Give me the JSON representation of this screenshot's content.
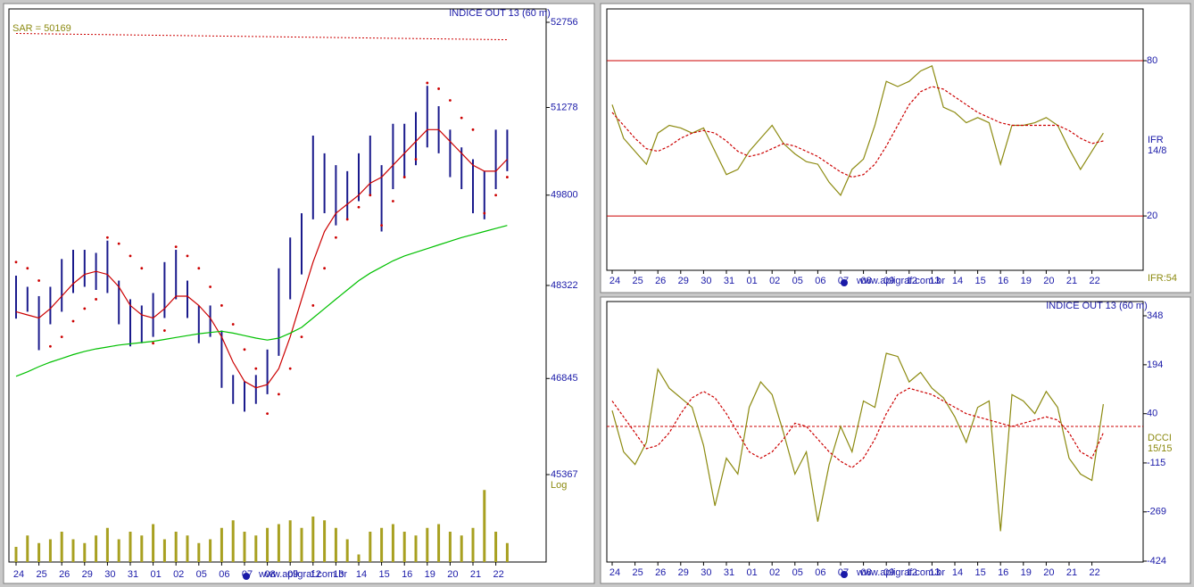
{
  "chart_data": [
    {
      "type": "ohlc",
      "title": "INDICE OUT 13 (60 m)",
      "annotation": "SAR = 50169",
      "scale_label": "Log",
      "log_scale": true,
      "watermark": "www.apligraf.com.br",
      "categories": [
        "24",
        null,
        "25",
        null,
        "26",
        null,
        "29",
        null,
        "30",
        null,
        "31",
        null,
        "01",
        null,
        "02",
        null,
        "05",
        null,
        "06",
        null,
        "07",
        null,
        "08",
        null,
        "09",
        null,
        "12",
        null,
        "13",
        null,
        "14",
        null,
        "15",
        null,
        "16",
        null,
        "19",
        null,
        "20",
        null,
        "21",
        null,
        "22",
        null
      ],
      "ylim": [
        45367,
        52756
      ],
      "yticks": [
        52756,
        51278,
        49800,
        48322,
        46845,
        45367
      ],
      "bar_color": "#1a1a8c",
      "high": [
        48480,
        48300,
        48150,
        48300,
        48750,
        48900,
        48900,
        48850,
        49050,
        48400,
        48100,
        48000,
        48200,
        48700,
        48900,
        48400,
        48000,
        48000,
        47600,
        46900,
        46800,
        46900,
        47300,
        48600,
        49100,
        49500,
        50800,
        50500,
        50300,
        50200,
        50500,
        50800,
        50300,
        51000,
        51000,
        51200,
        51650,
        51300,
        50900,
        50600,
        50400,
        50200,
        50900,
        50900
      ],
      "low": [
        47790,
        47900,
        47290,
        47700,
        47900,
        48200,
        48300,
        48250,
        48200,
        47700,
        47350,
        47400,
        47500,
        47800,
        48100,
        47800,
        47400,
        47500,
        46700,
        46450,
        46330,
        46450,
        46600,
        47200,
        48100,
        48500,
        49400,
        49500,
        49300,
        49400,
        49700,
        49800,
        49200,
        49900,
        50100,
        50300,
        50600,
        50500,
        50100,
        49900,
        49500,
        49400,
        49900,
        50200
      ],
      "series": [
        {
          "color": "#cc0000",
          "style": "solid",
          "values": [
            47900,
            47850,
            47800,
            47950,
            48150,
            48350,
            48500,
            48550,
            48500,
            48300,
            48000,
            47850,
            47800,
            47950,
            48150,
            48150,
            48000,
            47800,
            47500,
            47100,
            46800,
            46700,
            46750,
            47000,
            47500,
            48100,
            48700,
            49200,
            49500,
            49650,
            49800,
            50000,
            50100,
            50300,
            50500,
            50700,
            50900,
            50900,
            50700,
            50500,
            50300,
            50200,
            50200,
            50400
          ]
        },
        {
          "color": "#00c000",
          "style": "solid",
          "values": [
            46880,
            46950,
            47030,
            47100,
            47160,
            47220,
            47270,
            47310,
            47340,
            47370,
            47390,
            47410,
            47430,
            47460,
            47490,
            47520,
            47550,
            47570,
            47590,
            47560,
            47520,
            47480,
            47450,
            47480,
            47560,
            47650,
            47800,
            47950,
            48100,
            48250,
            48400,
            48520,
            48620,
            48720,
            48800,
            48860,
            48920,
            48980,
            49040,
            49100,
            49150,
            49200,
            49250,
            49300
          ]
        },
        {
          "color": "#cc0000",
          "style": "dots",
          "values": [
            48700,
            48600,
            48400,
            47350,
            47500,
            47750,
            47950,
            48100,
            49100,
            49000,
            48800,
            48600,
            47400,
            47600,
            48950,
            48800,
            48600,
            48300,
            48000,
            47700,
            47300,
            47000,
            46300,
            46600,
            47000,
            47500,
            48000,
            48600,
            49100,
            49400,
            49600,
            49800,
            49300,
            49700,
            50100,
            50400,
            51700,
            51600,
            51400,
            51100,
            50900,
            49500,
            49800,
            50100
          ]
        }
      ],
      "trend_line": {
        "color": "#cc0000",
        "values": [
          52560,
          52450
        ]
      },
      "volume": {
        "color": "#a8a020",
        "values": [
          20,
          35,
          25,
          30,
          40,
          30,
          25,
          35,
          45,
          30,
          40,
          35,
          50,
          30,
          40,
          35,
          25,
          30,
          45,
          55,
          40,
          35,
          45,
          50,
          55,
          45,
          60,
          55,
          45,
          30,
          10,
          40,
          45,
          50,
          40,
          35,
          45,
          50,
          40,
          35,
          45,
          95,
          40,
          25
        ]
      }
    },
    {
      "type": "line",
      "labels": [
        "IFR",
        "14/8"
      ],
      "value_label": "IFR:54",
      "watermark": "www.apligraf.com.br",
      "categories": [
        "24",
        null,
        "25",
        null,
        "26",
        null,
        "29",
        null,
        "30",
        null,
        "31",
        null,
        "01",
        null,
        "02",
        null,
        "05",
        null,
        "06",
        null,
        "07",
        null,
        "08",
        null,
        "09",
        null,
        "12",
        null,
        "13",
        null,
        "14",
        null,
        "15",
        null,
        "16",
        null,
        "19",
        null,
        "20",
        null,
        "21",
        null,
        "22",
        null
      ],
      "ylim": [
        -1,
        100
      ],
      "yticks": [
        20,
        80
      ],
      "grid": true,
      "grid_color": "#cc0000",
      "series": [
        {
          "color": "#8c8a10",
          "style": "solid",
          "values": [
            63,
            50,
            45,
            40,
            52,
            55,
            54,
            52,
            54,
            45,
            36,
            38,
            45,
            50,
            55,
            48,
            44,
            41,
            40,
            33,
            28,
            38,
            42,
            55,
            72,
            70,
            72,
            76,
            78,
            62,
            60,
            56,
            58,
            56,
            40,
            55,
            55,
            56,
            58,
            55,
            46,
            38,
            45,
            52
          ]
        },
        {
          "color": "#cc0000",
          "style": "dashed",
          "values": [
            60,
            55,
            50,
            46,
            45,
            47,
            50,
            52,
            53,
            52,
            49,
            45,
            43,
            44,
            46,
            48,
            47,
            45,
            43,
            40,
            37,
            35,
            36,
            40,
            47,
            55,
            63,
            68,
            70,
            69,
            66,
            63,
            60,
            58,
            56,
            55,
            55,
            55,
            55,
            55,
            53,
            50,
            48,
            49
          ]
        }
      ]
    },
    {
      "type": "line",
      "title": "INDICE OUT 13 (60 m)",
      "labels": [
        "DCCI",
        "15/15"
      ],
      "watermark": "www.apligraf.com.br",
      "categories": [
        "24",
        null,
        "25",
        null,
        "26",
        null,
        "29",
        null,
        "30",
        null,
        "31",
        null,
        "01",
        null,
        "02",
        null,
        "05",
        null,
        "06",
        null,
        "07",
        null,
        "08",
        null,
        "09",
        null,
        "12",
        null,
        "13",
        null,
        "14",
        null,
        "15",
        null,
        "16",
        null,
        "19",
        null,
        "20",
        null,
        "21",
        null,
        "22",
        null
      ],
      "ylim": [
        -424,
        348
      ],
      "yticks": [
        348,
        194,
        40,
        -115,
        -269,
        -424
      ],
      "reference_line": 0,
      "reference_color": "#cc0000",
      "series": [
        {
          "color": "#8c8a10",
          "style": "solid",
          "values": [
            50,
            -80,
            -120,
            -50,
            180,
            120,
            90,
            60,
            -60,
            -250,
            -100,
            -150,
            60,
            140,
            100,
            -20,
            -150,
            -80,
            -300,
            -120,
            0,
            -80,
            80,
            60,
            230,
            220,
            140,
            170,
            120,
            90,
            30,
            -50,
            60,
            80,
            -330,
            100,
            80,
            40,
            110,
            60,
            -100,
            -150,
            -170,
            70
          ]
        },
        {
          "color": "#cc0000",
          "style": "dashed",
          "values": [
            80,
            30,
            -20,
            -70,
            -60,
            -20,
            40,
            90,
            110,
            90,
            40,
            -20,
            -80,
            -100,
            -80,
            -40,
            10,
            0,
            -40,
            -80,
            -110,
            -130,
            -100,
            -40,
            40,
            100,
            120,
            110,
            100,
            80,
            60,
            40,
            30,
            20,
            10,
            0,
            10,
            20,
            30,
            20,
            -20,
            -80,
            -100,
            -20
          ]
        }
      ]
    }
  ]
}
